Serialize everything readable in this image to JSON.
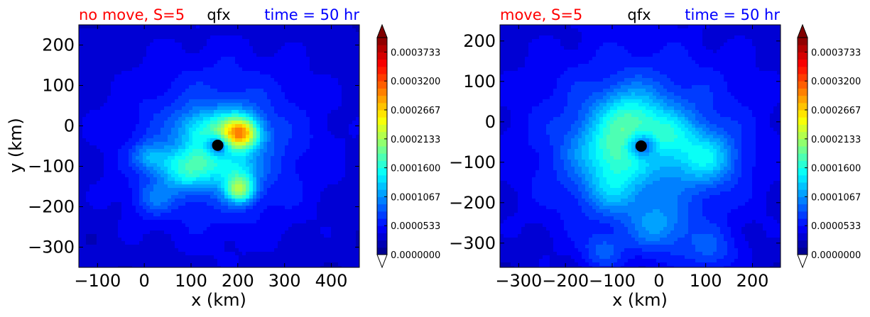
{
  "chart_data": [
    {
      "type": "heatmap",
      "variable": "qfx",
      "title_left": "no move, S=5",
      "title_center": "qfx",
      "title_right": "time = 50 hr",
      "xlabel": "x (km)",
      "ylabel": "y (km)",
      "xlim": [
        -140,
        460
      ],
      "ylim": [
        -350,
        250
      ],
      "xticks": [
        -100,
        0,
        100,
        200,
        300,
        400
      ],
      "xtick_labels": [
        "−100",
        "0",
        "100",
        "200",
        "300",
        "400"
      ],
      "yticks": [
        -300,
        -200,
        -100,
        0,
        100,
        200
      ],
      "ytick_labels": [
        "−300",
        "−200",
        "−100",
        "0",
        "100",
        "200"
      ],
      "center_marker": [
        157,
        -48
      ],
      "colormap": "jet",
      "features": [
        {
          "x": 160,
          "y": -50,
          "r": 230,
          "amp": 3e-05
        },
        {
          "x": 160,
          "y": -50,
          "r": 120,
          "amp": 4e-05
        },
        {
          "x": 195,
          "y": -15,
          "r": 35,
          "amp": 0.00012
        },
        {
          "x": 210,
          "y": -20,
          "r": 25,
          "amp": 0.0001
        },
        {
          "x": 120,
          "y": -10,
          "r": 35,
          "amp": 6e-05
        },
        {
          "x": 130,
          "y": -90,
          "r": 35,
          "amp": 7e-05
        },
        {
          "x": 200,
          "y": -120,
          "r": 30,
          "amp": 6e-05
        },
        {
          "x": 205,
          "y": -160,
          "r": 22,
          "amp": 0.00012
        },
        {
          "x": 10,
          "y": -75,
          "r": 25,
          "amp": 5e-05
        },
        {
          "x": 60,
          "y": -95,
          "r": 30,
          "amp": 5e-05
        },
        {
          "x": 90,
          "y": -130,
          "r": 30,
          "amp": 4e-05
        },
        {
          "x": 20,
          "y": -180,
          "r": 30,
          "amp": 4e-05
        },
        {
          "x": 157,
          "y": -48,
          "r": 18,
          "amp": -9e-05
        }
      ]
    },
    {
      "type": "heatmap",
      "variable": "qfx",
      "title_left": "move, S=5",
      "title_center": "qfx",
      "title_right": "time = 50 hr",
      "xlabel": "x (km)",
      "ylabel": "",
      "xlim": [
        -340,
        260
      ],
      "ylim": [
        -360,
        240
      ],
      "xticks": [
        -300,
        -200,
        -100,
        0,
        100,
        200
      ],
      "xtick_labels": [
        "−300",
        "−200",
        "−100",
        "0",
        "100",
        "200"
      ],
      "yticks": [
        -300,
        -200,
        -100,
        0,
        100,
        200
      ],
      "ytick_labels": [
        "−300",
        "−200",
        "−100",
        "0",
        "100",
        "200"
      ],
      "center_marker": [
        -38,
        -60
      ],
      "colormap": "jet",
      "features": [
        {
          "x": -40,
          "y": -60,
          "r": 260,
          "amp": 3e-05
        },
        {
          "x": -40,
          "y": -60,
          "r": 140,
          "amp": 5e-05
        },
        {
          "x": -90,
          "y": -70,
          "r": 55,
          "amp": 8e-05
        },
        {
          "x": -60,
          "y": 20,
          "r": 45,
          "amp": 6e-05
        },
        {
          "x": 20,
          "y": -30,
          "r": 40,
          "amp": 5e-05
        },
        {
          "x": 100,
          "y": -90,
          "r": 45,
          "amp": 7e-05
        },
        {
          "x": -100,
          "y": -170,
          "r": 40,
          "amp": 4e-05
        },
        {
          "x": 0,
          "y": -260,
          "r": 45,
          "amp": 5e-05
        },
        {
          "x": 110,
          "y": -320,
          "r": 40,
          "amp": 4e-05
        },
        {
          "x": -120,
          "y": -320,
          "r": 30,
          "amp": 4e-05
        },
        {
          "x": -38,
          "y": -60,
          "r": 22,
          "amp": -9e-05
        }
      ]
    }
  ],
  "colorbar": {
    "min": 0.0,
    "max": 0.0004,
    "levels": 30,
    "tick_labels": [
      "0.0000000",
      "0.0000533",
      "0.0001067",
      "0.0001600",
      "0.0002133",
      "0.0002667",
      "0.0003200",
      "0.0003733"
    ],
    "tick_values": [
      0.0,
      5.33e-05,
      0.0001067,
      0.00016,
      0.0002133,
      0.0002667,
      0.00032,
      0.0003733
    ],
    "extend": "both"
  }
}
